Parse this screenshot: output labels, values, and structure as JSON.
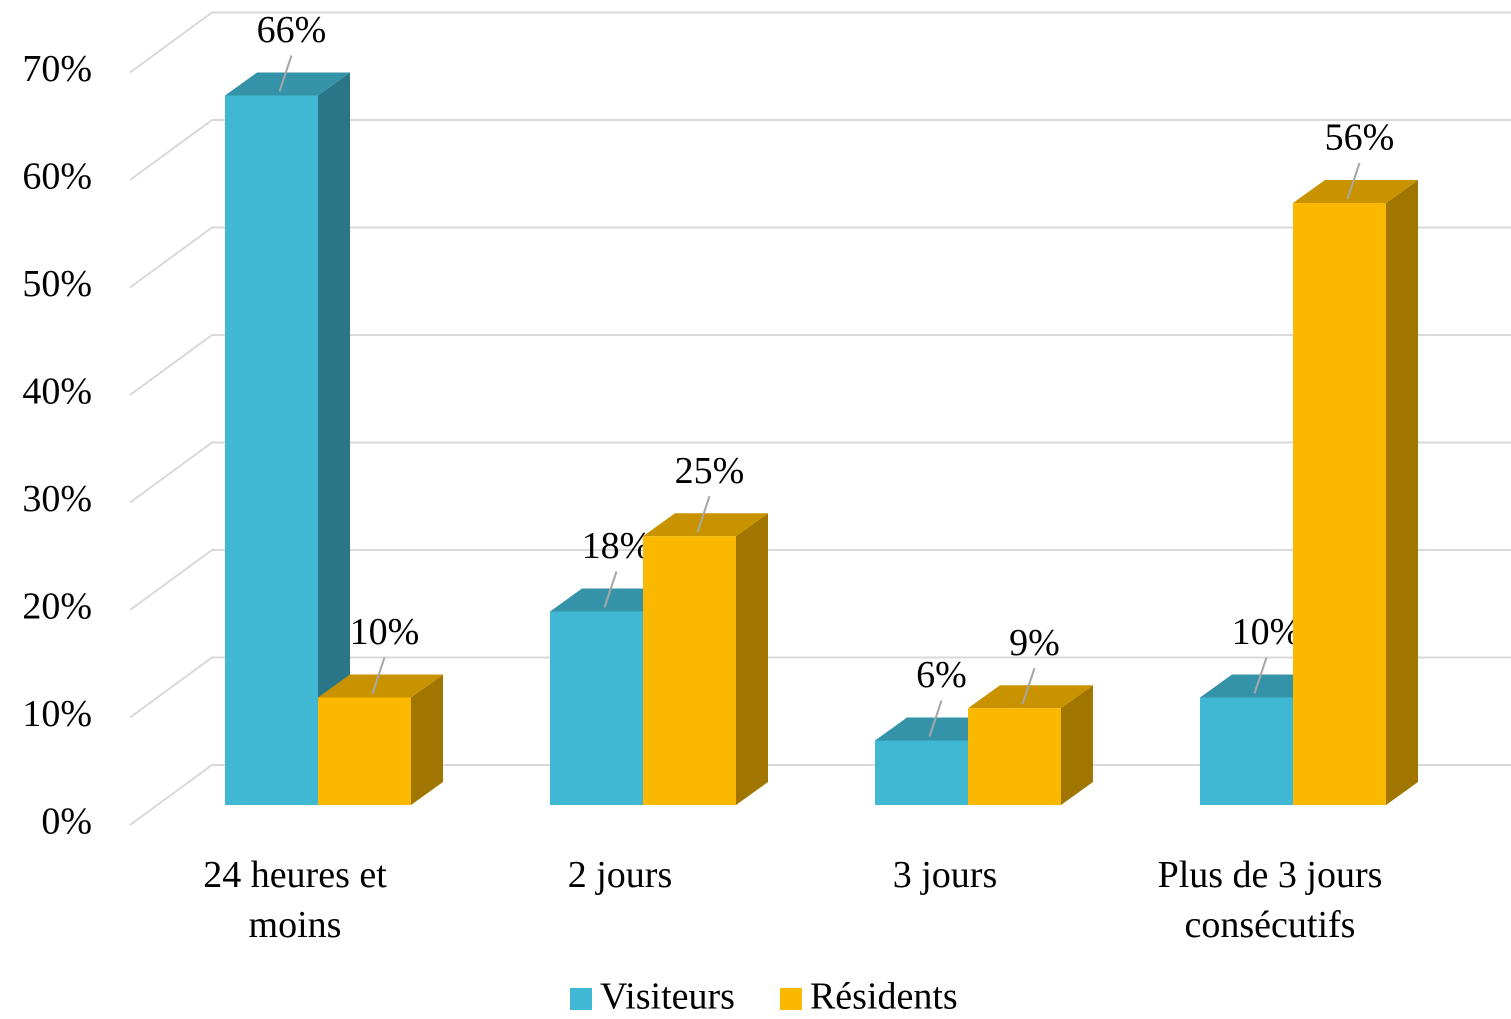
{
  "chart_data": {
    "type": "bar3d",
    "categories": [
      "24 heures et moins",
      "2 jours",
      "3 jours",
      "Plus de 3 jours consécutifs"
    ],
    "series": [
      {
        "name": "Visiteurs",
        "color": "#41b8d3",
        "values": [
          66,
          18,
          6,
          10
        ],
        "value_labels": [
          "66%",
          "18%",
          "6%",
          "10%"
        ]
      },
      {
        "name": "Résidents",
        "color": "#fbb800",
        "values": [
          10,
          25,
          9,
          56
        ],
        "value_labels": [
          "10%",
          "25%",
          "9%",
          "56%"
        ]
      }
    ],
    "ylim": [
      0,
      70
    ],
    "yticks": [
      {
        "value": 0,
        "label": "0%"
      },
      {
        "value": 10,
        "label": "10%"
      },
      {
        "value": 20,
        "label": "20%"
      },
      {
        "value": 30,
        "label": "30%"
      },
      {
        "value": 40,
        "label": "40%"
      },
      {
        "value": 50,
        "label": "50%"
      },
      {
        "value": 60,
        "label": "60%"
      },
      {
        "value": 70,
        "label": "70%"
      }
    ],
    "grid": true,
    "legend": "bottom"
  }
}
